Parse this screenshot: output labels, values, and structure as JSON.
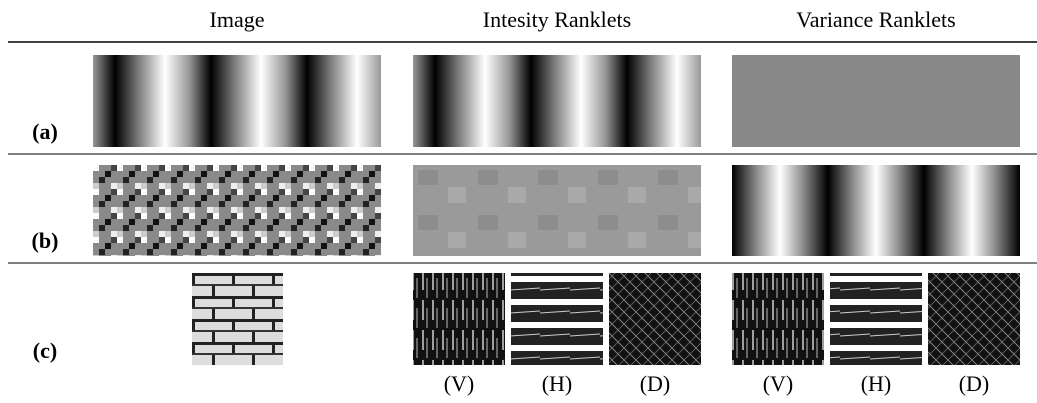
{
  "header": {
    "columns": [
      "Image",
      "Intesity Ranklets",
      "Variance Ranklets"
    ]
  },
  "rows": [
    {
      "label": "(a)"
    },
    {
      "label": "(b)"
    },
    {
      "label": "(c)"
    }
  ],
  "sublabels": {
    "intensity": [
      "(V)",
      "(H)",
      "(D)"
    ],
    "variance": [
      "(V)",
      "(H)",
      "(D)"
    ]
  }
}
